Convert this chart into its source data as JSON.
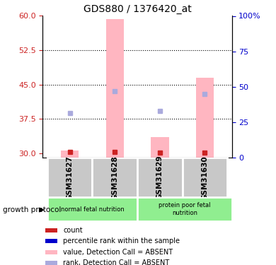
{
  "title": "GDS880 / 1376420_at",
  "samples": [
    "GSM31627",
    "GSM31628",
    "GSM31629",
    "GSM31630"
  ],
  "ylim_left": [
    29,
    60
  ],
  "yticks_left": [
    30,
    37.5,
    45,
    52.5,
    60
  ],
  "ylim_right": [
    0,
    100
  ],
  "yticks_right": [
    0,
    25,
    50,
    75,
    100
  ],
  "bar_values": [
    30.5,
    59.3,
    33.5,
    46.5
  ],
  "bar_color": "#FFB6C1",
  "bar_width": 0.4,
  "rank_values": [
    38.8,
    43.5,
    39.2,
    43.0
  ],
  "rank_color": "#AAAADD",
  "count_values": [
    30.2,
    30.2,
    30.1,
    30.1
  ],
  "count_color": "#CC2222",
  "sample_box_color": "#C8C8C8",
  "left_tick_color": "#CC2222",
  "right_tick_color": "#0000CC",
  "legend_items": [
    {
      "label": "count",
      "color": "#CC2222"
    },
    {
      "label": "percentile rank within the sample",
      "color": "#0000CC"
    },
    {
      "label": "value, Detection Call = ABSENT",
      "color": "#FFB6C1"
    },
    {
      "label": "rank, Detection Call = ABSENT",
      "color": "#AAAADD"
    }
  ],
  "growth_protocol_label": "growth protocol",
  "group1_label": "normal fetal nutrition",
  "group2_label": "protein poor fetal\nnutrition",
  "group_color": "#90EE90"
}
